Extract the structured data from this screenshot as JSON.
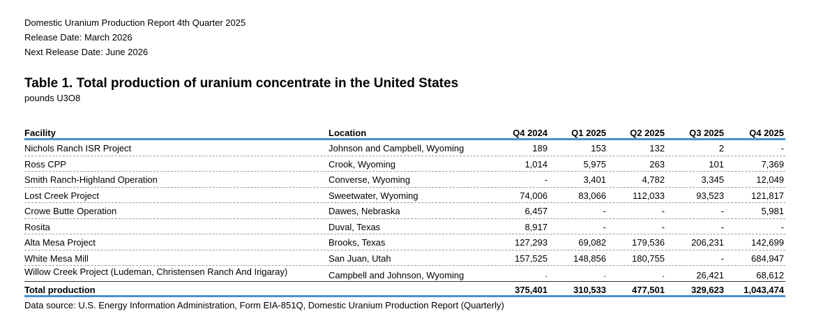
{
  "header": {
    "report_title": "Domestic Uranium Production Report 4th Quarter 2025",
    "release_date": "Release Date: March 2026",
    "next_release_date": "Next Release Date: June 2026"
  },
  "table": {
    "title": "Table 1. Total production of uranium concentrate in the United States",
    "units": "pounds U3O8",
    "columns": [
      "Facility",
      "Location",
      "Q4 2024",
      "Q1 2025",
      "Q2 2025",
      "Q3 2025",
      "Q4 2025"
    ],
    "rows": [
      [
        "Nichols Ranch ISR Project",
        "Johnson and Campbell, Wyoming",
        "189",
        "153",
        "132",
        "2",
        "-"
      ],
      [
        "Ross CPP",
        "Crook, Wyoming",
        "1,014",
        "5,975",
        "263",
        "101",
        "7,369"
      ],
      [
        "Smith Ranch-Highland Operation",
        "Converse, Wyoming",
        "-",
        "3,401",
        "4,782",
        "3,345",
        "12,049"
      ],
      [
        "Lost Creek Project",
        "Sweetwater, Wyoming",
        "74,006",
        "83,066",
        "112,033",
        "93,523",
        "121,817"
      ],
      [
        "Crowe Butte Operation",
        "Dawes, Nebraska",
        "6,457",
        "-",
        "-",
        "-",
        "5,981"
      ],
      [
        "Rosita",
        "Duval, Texas",
        "8,917",
        "-",
        "-",
        "-",
        "-"
      ],
      [
        "Alta Mesa Project",
        "Brooks, Texas",
        "127,293",
        "69,082",
        "179,536",
        "206,231",
        "142,699"
      ],
      [
        "White Mesa Mill",
        "San Juan, Utah",
        "157,525",
        "148,856",
        "180,755",
        "-",
        "684,947"
      ],
      [
        "Willow Creek Project (Ludeman, Christensen Ranch And Irigaray)",
        "Campbell and Johnson, Wyoming",
        ".",
        ".",
        ".",
        "26,421",
        "68,612"
      ]
    ],
    "total": [
      "Total production",
      "",
      "375,401",
      "310,533",
      "477,501",
      "329,623",
      "1,043,474"
    ]
  },
  "source": "Data source: U.S. Energy Information Administration, Form EIA-851Q, Domestic Uranium Production Report (Quarterly)",
  "colors": {
    "rule_accent": "#4a90d0"
  }
}
